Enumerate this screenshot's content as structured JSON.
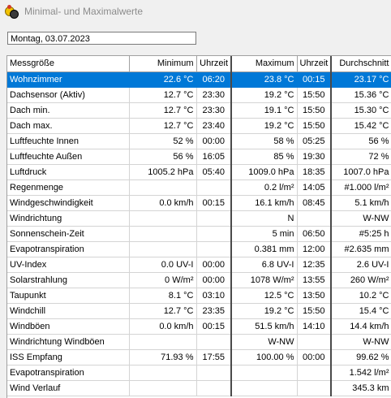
{
  "window": {
    "title": "Minimal- und Maximalwerte",
    "icon": "weather-app-icon"
  },
  "date_field": {
    "value": "Montag, 03.07.2023"
  },
  "table": {
    "headers": [
      "Messgröße",
      "Minimum",
      "Uhrzeit",
      "Maximum",
      "Uhrzeit",
      "Durchschnitt"
    ],
    "rows": [
      [
        "Wohnzimmer",
        "22.6 °C",
        "06:20",
        "23.8 °C",
        "00:15",
        "23.17 °C"
      ],
      [
        "Dachsensor (Aktiv)",
        "12.7 °C",
        "23:30",
        "19.2 °C",
        "15:50",
        "15.36 °C"
      ],
      [
        "Dach min.",
        "12.7 °C",
        "23:30",
        "19.1 °C",
        "15:50",
        "15.30 °C"
      ],
      [
        "Dach max.",
        "12.7 °C",
        "23:40",
        "19.2 °C",
        "15:50",
        "15.42 °C"
      ],
      [
        "Luftfeuchte Innen",
        "52 %",
        "00:00",
        "58 %",
        "05:25",
        "56 %"
      ],
      [
        "Luftfeuchte Außen",
        "56 %",
        "16:05",
        "85 %",
        "19:30",
        "72 %"
      ],
      [
        "Luftdruck",
        "1005.2 hPa",
        "05:40",
        "1009.0 hPa",
        "18:35",
        "1007.0 hPa"
      ],
      [
        "Regenmenge",
        "",
        "",
        "0.2 l/m²",
        "14:05",
        "#1.000 l/m²"
      ],
      [
        "Windgeschwindigkeit",
        "0.0 km/h",
        "00:15",
        "16.1 km/h",
        "08:45",
        "5.1 km/h"
      ],
      [
        "Windrichtung",
        "",
        "",
        "N",
        "",
        "W-NW"
      ],
      [
        "Sonnenschein-Zeit",
        "",
        "",
        "5 min",
        "06:50",
        "#5:25 h"
      ],
      [
        "Evapotranspiration",
        "",
        "",
        "0.381 mm",
        "12:00",
        "#2.635 mm"
      ],
      [
        "UV-Index",
        "0.0 UV-I",
        "00:00",
        "6.8 UV-I",
        "12:35",
        "2.6 UV-I"
      ],
      [
        "Solarstrahlung",
        "0 W/m²",
        "00:00",
        "1078 W/m²",
        "13:55",
        "260 W/m²"
      ],
      [
        "Taupunkt",
        "8.1 °C",
        "03:10",
        "12.5 °C",
        "13:50",
        "10.2 °C"
      ],
      [
        "Windchill",
        "12.7 °C",
        "23:35",
        "19.2 °C",
        "15:50",
        "15.4 °C"
      ],
      [
        "Windböen",
        "0.0 km/h",
        "00:15",
        "51.5 km/h",
        "14:10",
        "14.4 km/h"
      ],
      [
        "Windrichtung Windböen",
        "",
        "",
        "W-NW",
        "",
        "W-NW"
      ],
      [
        "ISS Empfang",
        "71.93 %",
        "17:55",
        "100.00 %",
        "00:00",
        "99.62 %"
      ],
      [
        "Evapotranspiration",
        "",
        "",
        "",
        "",
        "1.542 l/m²"
      ],
      [
        "Wind Verlauf",
        "",
        "",
        "",
        "",
        "345.3 km"
      ]
    ],
    "selected_row": 0,
    "colors": {
      "selection": "#0078d7",
      "grid": "#d4d4d4",
      "separator": "#4a4a4a"
    }
  }
}
